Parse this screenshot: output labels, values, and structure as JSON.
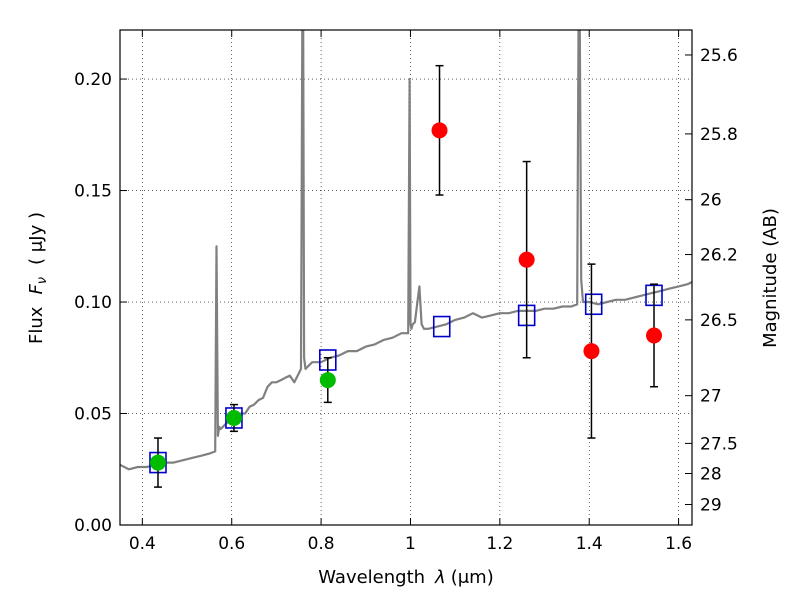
{
  "chart_data": {
    "type": "scatter",
    "xlabel_text": "Wavelength",
    "xlabel_symbol": "λ",
    "xlabel_unit": "(μm)",
    "ylabel_text": "Flux",
    "ylabel_symbol": "F",
    "ylabel_subscript": "ν",
    "ylabel_unit": "( μJy )",
    "y2label": "Magnitude (AB)",
    "xlim": [
      0.35,
      1.63
    ],
    "ylim": [
      0.0,
      0.222
    ],
    "grid": true,
    "x_ticks": [
      {
        "value": 0.4,
        "label": "0.4"
      },
      {
        "value": 0.6,
        "label": "0.6"
      },
      {
        "value": 0.8,
        "label": "0.8"
      },
      {
        "value": 1.0,
        "label": "1"
      },
      {
        "value": 1.2,
        "label": "1.2"
      },
      {
        "value": 1.4,
        "label": "1.4"
      },
      {
        "value": 1.6,
        "label": "1.6"
      }
    ],
    "y_ticks": [
      {
        "value": 0.0,
        "label": "0.00"
      },
      {
        "value": 0.05,
        "label": "0.05"
      },
      {
        "value": 0.1,
        "label": "0.10"
      },
      {
        "value": 0.15,
        "label": "0.15"
      },
      {
        "value": 0.2,
        "label": "0.20"
      }
    ],
    "mag_ticks": [
      {
        "label": "25.6",
        "flux": 0.2108
      },
      {
        "label": "25.8",
        "flux": 0.1754
      },
      {
        "label": "26",
        "flux": 0.1459
      },
      {
        "label": "26.2",
        "flux": 0.1213
      },
      {
        "label": "26.5",
        "flux": 0.092
      },
      {
        "label": "27",
        "flux": 0.058
      },
      {
        "label": "27.5",
        "flux": 0.0366
      },
      {
        "label": "28",
        "flux": 0.0231
      },
      {
        "label": "29",
        "flux": 0.0092
      }
    ],
    "colors": {
      "spectrum": "#808080",
      "model_box": "#0000cc",
      "green_points": "#00bb00",
      "red_points": "#ff0000",
      "errorbar": "#000000"
    },
    "series": [
      {
        "name": "template spectrum",
        "kind": "line",
        "x": [
          0.35,
          0.37,
          0.39,
          0.41,
          0.43,
          0.45,
          0.47,
          0.49,
          0.51,
          0.53,
          0.55,
          0.563,
          0.566,
          0.569,
          0.572,
          0.575,
          0.58,
          0.59,
          0.6,
          0.61,
          0.62,
          0.63,
          0.64,
          0.65,
          0.66,
          0.67,
          0.68,
          0.69,
          0.7,
          0.71,
          0.72,
          0.73,
          0.74,
          0.75,
          0.755,
          0.758,
          0.76,
          0.762,
          0.765,
          0.77,
          0.78,
          0.79,
          0.8,
          0.82,
          0.84,
          0.86,
          0.88,
          0.9,
          0.92,
          0.94,
          0.96,
          0.98,
          0.995,
          0.998,
          1.0,
          1.002,
          1.005,
          1.01,
          1.02,
          1.025,
          1.03,
          1.04,
          1.06,
          1.08,
          1.1,
          1.12,
          1.14,
          1.16,
          1.18,
          1.2,
          1.22,
          1.24,
          1.26,
          1.28,
          1.3,
          1.32,
          1.34,
          1.36,
          1.373,
          1.376,
          1.379,
          1.382,
          1.386,
          1.39,
          1.4,
          1.42,
          1.44,
          1.46,
          1.48,
          1.5,
          1.52,
          1.54,
          1.56,
          1.58,
          1.6,
          1.62,
          1.63
        ],
        "y": [
          0.027,
          0.025,
          0.026,
          0.026,
          0.027,
          0.028,
          0.028,
          0.029,
          0.03,
          0.031,
          0.032,
          0.033,
          0.125,
          0.04,
          0.044,
          0.043,
          0.044,
          0.046,
          0.046,
          0.047,
          0.05,
          0.05,
          0.053,
          0.054,
          0.056,
          0.057,
          0.062,
          0.064,
          0.064,
          0.065,
          0.066,
          0.067,
          0.064,
          0.068,
          0.07,
          0.222,
          0.222,
          0.075,
          0.07,
          0.071,
          0.073,
          0.073,
          0.073,
          0.075,
          0.076,
          0.078,
          0.078,
          0.08,
          0.081,
          0.083,
          0.084,
          0.086,
          0.086,
          0.2,
          0.09,
          0.088,
          0.09,
          0.091,
          0.107,
          0.09,
          0.088,
          0.088,
          0.089,
          0.09,
          0.092,
          0.093,
          0.095,
          0.093,
          0.094,
          0.095,
          0.095,
          0.096,
          0.096,
          0.096,
          0.097,
          0.097,
          0.098,
          0.098,
          0.099,
          0.222,
          0.222,
          0.11,
          0.1,
          0.1,
          0.1,
          0.099,
          0.1,
          0.101,
          0.101,
          0.102,
          0.103,
          0.104,
          0.105,
          0.106,
          0.107,
          0.108,
          0.109
        ]
      },
      {
        "name": "model photometry",
        "kind": "open-square",
        "x": [
          0.435,
          0.605,
          0.815,
          1.07,
          1.26,
          1.41,
          1.545
        ],
        "y": [
          0.028,
          0.048,
          0.074,
          0.089,
          0.094,
          0.099,
          0.103
        ]
      },
      {
        "name": "optical photometry",
        "kind": "filled-circle",
        "x": [
          0.435,
          0.605,
          0.815
        ],
        "y": [
          0.028,
          0.048,
          0.065
        ],
        "err": [
          0.011,
          0.006,
          0.01
        ]
      },
      {
        "name": "infrared photometry",
        "kind": "filled-circle",
        "x": [
          1.065,
          1.26,
          1.405,
          1.545
        ],
        "y": [
          0.177,
          0.119,
          0.078,
          0.085
        ],
        "err": [
          0.029,
          0.044,
          0.039,
          0.023
        ]
      }
    ]
  }
}
